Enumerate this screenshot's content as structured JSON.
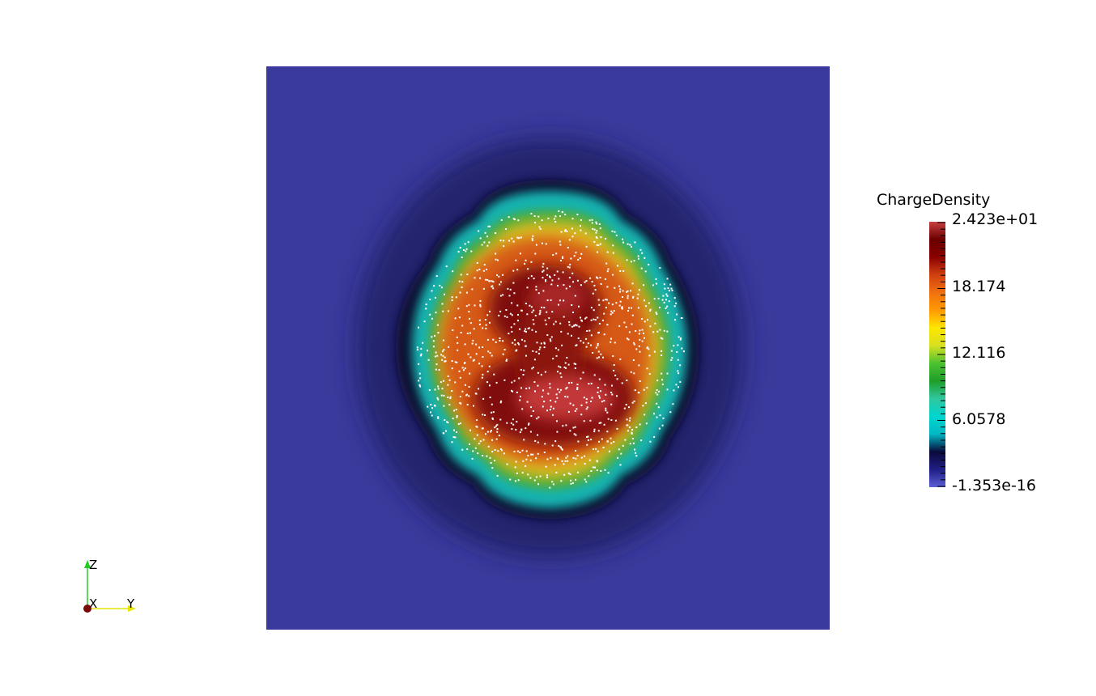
{
  "colorbar": {
    "title": "ChargeDensity",
    "labels": [
      "2.423e+01",
      "18.174",
      "12.116",
      "6.0578",
      "-1.353e-16"
    ],
    "stops": [
      "#5b5fd6",
      "#1f1e86",
      "#0a0a3a",
      "#00b7c3",
      "#00d6cf",
      "#30c7a0",
      "#1e9e28",
      "#4cc230",
      "#d7e020",
      "#ffe600",
      "#ff9a00",
      "#f07010",
      "#d04010",
      "#8a0000",
      "#6a0000",
      "#c84040"
    ]
  },
  "orientation": {
    "z_label": "Z",
    "x_label": "X",
    "y_label": "Y"
  },
  "colors": {
    "background": "#3a3a9c",
    "particles": "#ffffff"
  }
}
